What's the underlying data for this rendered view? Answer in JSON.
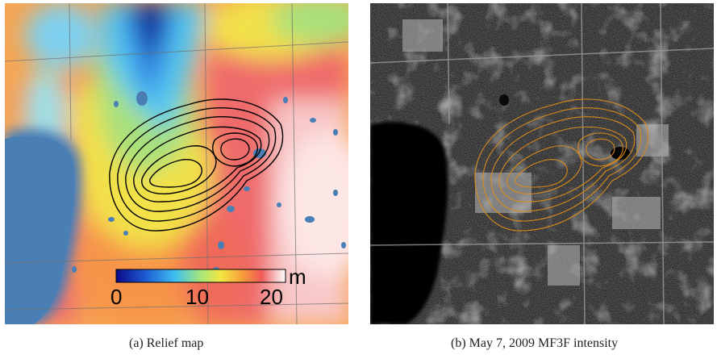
{
  "panel_a": {
    "caption": "(a)  Relief map",
    "colorbar": {
      "ticks": [
        "0",
        "10",
        "20"
      ],
      "unit": "m",
      "range": [
        0,
        20
      ]
    },
    "contour_color": "#000000"
  },
  "panel_b": {
    "caption": "(b)  May 7, 2009 MF3F intensity",
    "contour_color": "#d98a1c"
  },
  "colors": {
    "lake": "#4a7fb5",
    "relief_low": "#0a0a8a",
    "relief_mid": "#f5e642",
    "relief_high": "#ffffff"
  }
}
